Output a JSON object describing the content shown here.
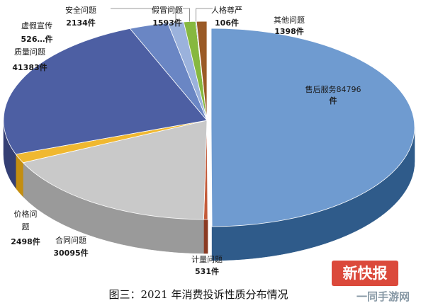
{
  "chart_data": {
    "type": "pie",
    "title": "图三：2021 年消费投诉性质分布情况",
    "slices": [
      {
        "name": "售后服务",
        "value": 84796,
        "label_name": "售后服务84796",
        "label_value": "件",
        "color": "#6f9bd0",
        "side": "#2f5b8a"
      },
      {
        "name": "计量问题",
        "value": 531,
        "label_name": "计量问题",
        "label_value": "531件",
        "color": "#c35b3a",
        "side": "#8a3a22"
      },
      {
        "name": "合同问题",
        "value": 30095,
        "label_name": "合同问题",
        "label_value": "30095件",
        "color": "#c9c9c9",
        "side": "#9a9a9a"
      },
      {
        "name": "价格问题",
        "value": 2498,
        "label_name": "价格问题",
        "label_value": "2498件",
        "color": "#f0b830",
        "side": "#c48e10"
      },
      {
        "name": "质量问题",
        "value": 41383,
        "label_name": "质量问题",
        "label_value": "41383件",
        "color": "#4d5fa3",
        "side": "#343f74"
      },
      {
        "name": "虚假宣传",
        "value": 5260,
        "label_name": "虚假宣传",
        "label_value": "526…件",
        "color": "#6a86c4",
        "side": "#45609a"
      },
      {
        "name": "安全问题",
        "value": 2134,
        "label_name": "安全问题",
        "label_value": "2134件",
        "color": "#9bb2dc",
        "side": "#6b82ac"
      },
      {
        "name": "假冒问题",
        "value": 1593,
        "label_name": "假冒问题",
        "label_value": "1593件",
        "color": "#86b83f",
        "side": "#5f8a28"
      },
      {
        "name": "人格尊严",
        "value": 106,
        "label_name": "人格尊严",
        "label_value": "106件",
        "color": "#1f5c99",
        "side": "#163f6a"
      },
      {
        "name": "其他问题",
        "value": 1398,
        "label_name": "其他问题",
        "label_value": "1398件",
        "color": "#9a5a26",
        "side": "#6a3c17"
      }
    ]
  },
  "watermark": {
    "brand": "新快报",
    "site": "一同手游网"
  }
}
